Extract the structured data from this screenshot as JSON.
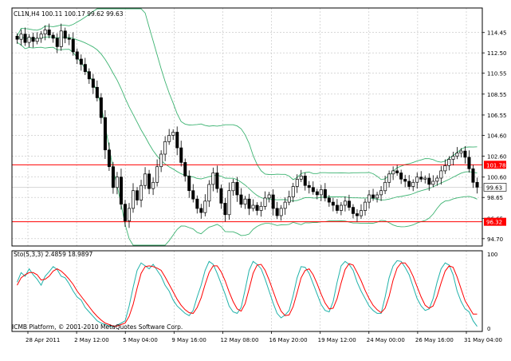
{
  "window": {
    "title": "CL1N,H4  100.11 100.17 99.62 99.63",
    "footer": "ICMB Platform, © 2001-2010 MetaQuotes Software Corp."
  },
  "colors": {
    "background": "#ffffff",
    "grid": "#c0c0c0",
    "frame": "#000000",
    "candle": "#000000",
    "bands": "#3cb371",
    "level_line": "#ff0000",
    "stoch_main": "#20b2aa",
    "stoch_signal": "#ff0000",
    "label_fill": "#ff0000",
    "label_text": "#ffffff",
    "current_label_fill": "#ffffff"
  },
  "chart_data": [
    {
      "type": "candlestick",
      "title": "CL1N,H4  100.11 100.17 99.62 99.63",
      "ylim": [
        94.0,
        116.8
      ],
      "y_ticks": [
        "114.45",
        "112.50",
        "110.55",
        "108.55",
        "106.55",
        "104.60",
        "102.60",
        "100.60",
        "98.65",
        "96.65",
        "94.70"
      ],
      "x_ticks": [
        "28 Apr 2011",
        "2 May 12:00",
        "5 May 04:00",
        "9 May 16:00",
        "12 May 08:00",
        "16 May 20:00",
        "19 May 12:00",
        "24 May 00:00",
        "26 May 16:00",
        "31 May 04:00"
      ],
      "levels": [
        {
          "value": 101.78,
          "label": "101.78"
        },
        {
          "value": 96.32,
          "label": "96.32"
        }
      ],
      "current_price": {
        "value": 99.63,
        "label": "99.63"
      },
      "bollinger": {
        "period": 20,
        "deviation": 2
      },
      "closes": [
        113.8,
        114.3,
        113.5,
        114.0,
        113.6,
        113.9,
        114.3,
        114.7,
        114.2,
        113.9,
        113.1,
        114.6,
        113.9,
        113.8,
        112.6,
        111.9,
        111.4,
        110.7,
        110.0,
        109.2,
        108.2,
        106.3,
        103.2,
        101.6,
        99.6,
        100.6,
        98.0,
        96.4,
        97.6,
        99.3,
        98.4,
        99.8,
        100.9,
        99.5,
        100.1,
        101.6,
        102.8,
        104.0,
        104.6,
        104.9,
        103.4,
        102.0,
        100.7,
        99.3,
        98.5,
        97.6,
        97.2,
        98.3,
        99.9,
        101.0,
        99.5,
        98.1,
        97.0,
        99.3,
        100.1,
        98.9,
        98.0,
        98.5,
        97.6,
        97.9,
        97.4,
        97.8,
        98.6,
        98.9,
        97.6,
        96.9,
        97.6,
        98.2,
        98.7,
        99.7,
        100.4,
        100.7,
        99.8,
        99.6,
        99.2,
        98.9,
        99.4,
        98.6,
        98.2,
        97.9,
        97.4,
        97.9,
        98.3,
        97.7,
        97.1,
        96.9,
        97.4,
        98.2,
        98.9,
        98.6,
        98.9,
        99.3,
        100.1,
        100.9,
        101.2,
        101.0,
        100.4,
        100.2,
        99.7,
        100.1,
        100.6,
        100.4,
        100.5,
        99.9,
        100.2,
        100.5,
        101.2,
        101.7,
        102.3,
        102.6,
        102.9,
        103.1,
        102.5,
        101.4,
        100.1,
        99.63
      ]
    },
    {
      "type": "line",
      "title": "Sto(5,3,3) 2.4859 18.9897",
      "ylim": [
        0,
        100
      ],
      "y_ticks": [
        "100",
        "0"
      ],
      "series": [
        {
          "name": "main",
          "values": [
            62,
            75,
            70,
            80,
            72,
            66,
            58,
            70,
            76,
            83,
            79,
            70,
            68,
            60,
            50,
            42,
            38,
            28,
            22,
            16,
            10,
            7,
            5,
            3,
            2,
            4,
            7,
            10,
            30,
            55,
            78,
            88,
            84,
            80,
            86,
            78,
            70,
            58,
            50,
            38,
            30,
            25,
            20,
            17,
            24,
            42,
            58,
            78,
            90,
            86,
            74,
            60,
            46,
            30,
            22,
            20,
            28,
            52,
            78,
            90,
            86,
            80,
            66,
            50,
            34,
            20,
            14,
            18,
            24,
            44,
            68,
            83,
            82,
            74,
            60,
            46,
            32,
            24,
            22,
            36,
            62,
            84,
            90,
            86,
            78,
            62,
            50,
            40,
            30,
            24,
            20,
            20,
            42,
            68,
            84,
            91,
            90,
            82,
            72,
            56,
            40,
            30,
            24,
            26,
            40,
            62,
            80,
            88,
            85,
            72,
            50,
            36,
            26,
            22,
            10,
            2.49
          ]
        },
        {
          "name": "signal",
          "values": [
            58,
            68,
            72,
            75,
            75,
            72,
            65,
            66,
            70,
            77,
            80,
            77,
            72,
            66,
            59,
            50,
            43,
            36,
            29,
            22,
            16,
            11,
            7,
            5,
            3,
            3,
            5,
            7,
            16,
            32,
            54,
            74,
            83,
            84,
            83,
            81,
            78,
            69,
            59,
            49,
            39,
            31,
            25,
            21,
            20,
            28,
            41,
            59,
            75,
            84,
            84,
            76,
            64,
            49,
            36,
            26,
            23,
            33,
            53,
            74,
            85,
            86,
            78,
            65,
            50,
            35,
            23,
            17,
            18,
            29,
            48,
            68,
            78,
            80,
            72,
            60,
            46,
            34,
            26,
            27,
            40,
            61,
            79,
            87,
            85,
            75,
            64,
            51,
            40,
            31,
            25,
            21,
            27,
            43,
            65,
            81,
            88,
            88,
            81,
            70,
            56,
            42,
            31,
            27,
            30,
            43,
            61,
            77,
            84,
            82,
            69,
            53,
            37,
            28,
            19,
            18.99
          ]
        }
      ]
    }
  ]
}
